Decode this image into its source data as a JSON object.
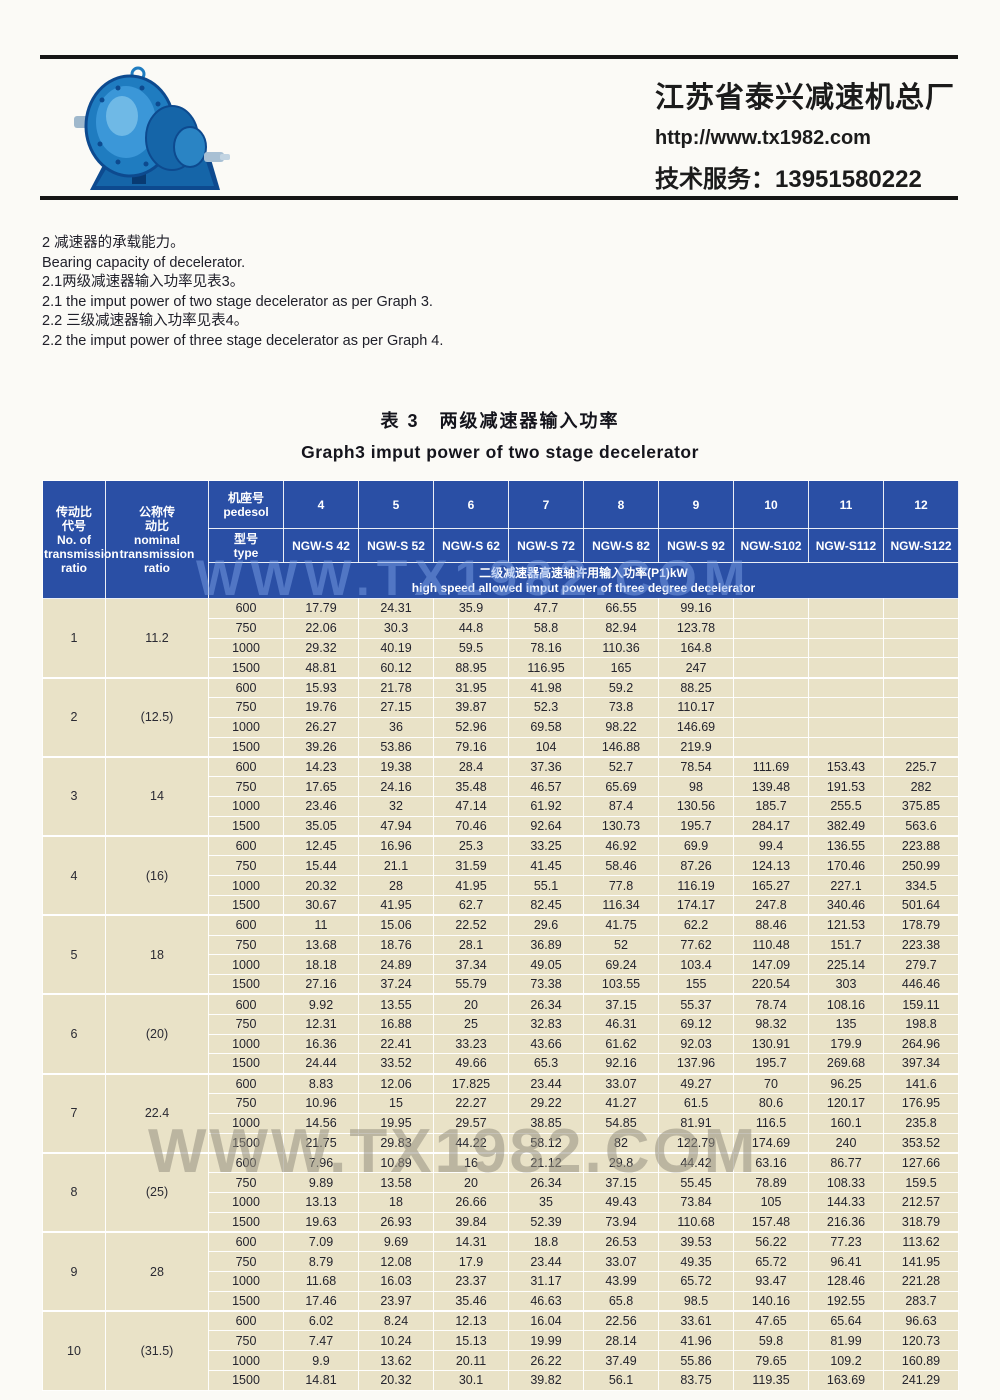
{
  "header": {
    "company": "江苏省泰兴减速机总厂",
    "website": "http://www.tx1982.com",
    "service": "技术服务：13951580222"
  },
  "intro": {
    "lines": [
      "2 减速器的承载能力。",
      "Bearing capacity of decelerator.",
      "2.1两级减速器输入功率见表3。",
      "2.1 the imput power of two stage decelerator as per Graph 3.",
      "2.2 三级减速器输入功率见表4。",
      "2.2 the imput power of three stage decelerator as per Graph 4."
    ]
  },
  "table": {
    "title_cn": "表 3　两级减速器输入功率",
    "title_en": "Graph3 imput power of two stage decelerator",
    "col1_header": "传动比\n代号\nNo. of\ntransmission\nratio",
    "col2_header": "公称传\n动比\nnominal\ntransmission\nratio",
    "pedestal_header": "机座号\npedesol",
    "type_header": "型号\ntype",
    "pedestal_numbers": [
      "4",
      "5",
      "6",
      "7",
      "8",
      "9",
      "10",
      "11",
      "12"
    ],
    "types": [
      "NGW-S 42",
      "NGW-S 52",
      "NGW-S 62",
      "NGW-S 72",
      "NGW-S 82",
      "NGW-S 92",
      "NGW-S102",
      "NGW-S112",
      "NGW-S122"
    ],
    "subheader": "二级减速器高速轴许用输入功率(P1)kW\nhigh speed allowed imput power of three degree decelerator",
    "groups": [
      {
        "no": "1",
        "ratio": "11.2",
        "rows": [
          {
            "speed": "600",
            "values": [
              "17.79",
              "24.31",
              "35.9",
              "47.7",
              "66.55",
              "99.16",
              "",
              "",
              ""
            ]
          },
          {
            "speed": "750",
            "values": [
              "22.06",
              "30.3",
              "44.8",
              "58.8",
              "82.94",
              "123.78",
              "",
              "",
              ""
            ]
          },
          {
            "speed": "1000",
            "values": [
              "29.32",
              "40.19",
              "59.5",
              "78.16",
              "110.36",
              "164.8",
              "",
              "",
              ""
            ]
          },
          {
            "speed": "1500",
            "values": [
              "48.81",
              "60.12",
              "88.95",
              "116.95",
              "165",
              "247",
              "",
              "",
              ""
            ]
          }
        ]
      },
      {
        "no": "2",
        "ratio": "(12.5)",
        "rows": [
          {
            "speed": "600",
            "values": [
              "15.93",
              "21.78",
              "31.95",
              "41.98",
              "59.2",
              "88.25",
              "",
              "",
              ""
            ]
          },
          {
            "speed": "750",
            "values": [
              "19.76",
              "27.15",
              "39.87",
              "52.3",
              "73.8",
              "110.17",
              "",
              "",
              ""
            ]
          },
          {
            "speed": "1000",
            "values": [
              "26.27",
              "36",
              "52.96",
              "69.58",
              "98.22",
              "146.69",
              "",
              "",
              ""
            ]
          },
          {
            "speed": "1500",
            "values": [
              "39.26",
              "53.86",
              "79.16",
              "104",
              "146.88",
              "219.9",
              "",
              "",
              ""
            ]
          }
        ]
      },
      {
        "no": "3",
        "ratio": "14",
        "rows": [
          {
            "speed": "600",
            "values": [
              "14.23",
              "19.38",
              "28.4",
              "37.36",
              "52.7",
              "78.54",
              "111.69",
              "153.43",
              "225.7"
            ]
          },
          {
            "speed": "750",
            "values": [
              "17.65",
              "24.16",
              "35.48",
              "46.57",
              "65.69",
              "98",
              "139.48",
              "191.53",
              "282"
            ]
          },
          {
            "speed": "1000",
            "values": [
              "23.46",
              "32",
              "47.14",
              "61.92",
              "87.4",
              "130.56",
              "185.7",
              "255.5",
              "375.85"
            ]
          },
          {
            "speed": "1500",
            "values": [
              "35.05",
              "47.94",
              "70.46",
              "92.64",
              "130.73",
              "195.7",
              "284.17",
              "382.49",
              "563.6"
            ]
          }
        ]
      },
      {
        "no": "4",
        "ratio": "(16)",
        "rows": [
          {
            "speed": "600",
            "values": [
              "12.45",
              "16.96",
              "25.3",
              "33.25",
              "46.92",
              "69.9",
              "99.4",
              "136.55",
              "223.88"
            ]
          },
          {
            "speed": "750",
            "values": [
              "15.44",
              "21.1",
              "31.59",
              "41.45",
              "58.46",
              "87.26",
              "124.13",
              "170.46",
              "250.99"
            ]
          },
          {
            "speed": "1000",
            "values": [
              "20.32",
              "28",
              "41.95",
              "55.1",
              "77.8",
              "116.19",
              "165.27",
              "227.1",
              "334.5"
            ]
          },
          {
            "speed": "1500",
            "values": [
              "30.67",
              "41.95",
              "62.7",
              "82.45",
              "116.34",
              "174.17",
              "247.8",
              "340.46",
              "501.64"
            ]
          }
        ]
      },
      {
        "no": "5",
        "ratio": "18",
        "rows": [
          {
            "speed": "600",
            "values": [
              "11",
              "15.06",
              "22.52",
              "29.6",
              "41.75",
              "62.2",
              "88.46",
              "121.53",
              "178.79"
            ]
          },
          {
            "speed": "750",
            "values": [
              "13.68",
              "18.76",
              "28.1",
              "36.89",
              "52",
              "77.62",
              "110.48",
              "151.7",
              "223.38"
            ]
          },
          {
            "speed": "1000",
            "values": [
              "18.18",
              "24.89",
              "37.34",
              "49.05",
              "69.24",
              "103.4",
              "147.09",
              "225.14",
              "279.7"
            ]
          },
          {
            "speed": "1500",
            "values": [
              "27.16",
              "37.24",
              "55.79",
              "73.38",
              "103.55",
              "155",
              "220.54",
              "303",
              "446.46"
            ]
          }
        ]
      },
      {
        "no": "6",
        "ratio": "(20)",
        "rows": [
          {
            "speed": "600",
            "values": [
              "9.92",
              "13.55",
              "20",
              "26.34",
              "37.15",
              "55.37",
              "78.74",
              "108.16",
              "159.11"
            ]
          },
          {
            "speed": "750",
            "values": [
              "12.31",
              "16.88",
              "25",
              "32.83",
              "46.31",
              "69.12",
              "98.32",
              "135",
              "198.8"
            ]
          },
          {
            "speed": "1000",
            "values": [
              "16.36",
              "22.41",
              "33.23",
              "43.66",
              "61.62",
              "92.03",
              "130.91",
              "179.9",
              "264.96"
            ]
          },
          {
            "speed": "1500",
            "values": [
              "24.44",
              "33.52",
              "49.66",
              "65.3",
              "92.16",
              "137.96",
              "195.7",
              "269.68",
              "397.34"
            ]
          }
        ]
      },
      {
        "no": "7",
        "ratio": "22.4",
        "rows": [
          {
            "speed": "600",
            "values": [
              "8.83",
              "12.06",
              "17.825",
              "23.44",
              "33.07",
              "49.27",
              "70",
              "96.25",
              "141.6"
            ]
          },
          {
            "speed": "750",
            "values": [
              "10.96",
              "15",
              "22.27",
              "29.22",
              "41.27",
              "61.5",
              "80.6",
              "120.17",
              "176.95"
            ]
          },
          {
            "speed": "1000",
            "values": [
              "14.56",
              "19.95",
              "29.57",
              "38.85",
              "54.85",
              "81.91",
              "116.5",
              "160.1",
              "235.8"
            ]
          },
          {
            "speed": "1500",
            "values": [
              "21.75",
              "29.83",
              "44.22",
              "58.12",
              "82",
              "122.79",
              "174.69",
              "240",
              "353.52"
            ]
          }
        ]
      },
      {
        "no": "8",
        "ratio": "(25)",
        "rows": [
          {
            "speed": "600",
            "values": [
              "7.96",
              "10.89",
              "16",
              "21.12",
              "29.8",
              "44.42",
              "63.16",
              "86.77",
              "127.66"
            ]
          },
          {
            "speed": "750",
            "values": [
              "9.89",
              "13.58",
              "20",
              "26.34",
              "37.15",
              "55.45",
              "78.89",
              "108.33",
              "159.5"
            ]
          },
          {
            "speed": "1000",
            "values": [
              "13.13",
              "18",
              "26.66",
              "35",
              "49.43",
              "73.84",
              "105",
              "144.33",
              "212.57"
            ]
          },
          {
            "speed": "1500",
            "values": [
              "19.63",
              "26.93",
              "39.84",
              "52.39",
              "73.94",
              "110.68",
              "157.48",
              "216.36",
              "318.79"
            ]
          }
        ]
      },
      {
        "no": "9",
        "ratio": "28",
        "rows": [
          {
            "speed": "600",
            "values": [
              "7.09",
              "9.69",
              "14.31",
              "18.8",
              "26.53",
              "39.53",
              "56.22",
              "77.23",
              "113.62"
            ]
          },
          {
            "speed": "750",
            "values": [
              "8.79",
              "12.08",
              "17.9",
              "23.44",
              "33.07",
              "49.35",
              "65.72",
              "96.41",
              "141.95"
            ]
          },
          {
            "speed": "1000",
            "values": [
              "11.68",
              "16.03",
              "23.37",
              "31.17",
              "43.99",
              "65.72",
              "93.47",
              "128.46",
              "221.28"
            ]
          },
          {
            "speed": "1500",
            "values": [
              "17.46",
              "23.97",
              "35.46",
              "46.63",
              "65.8",
              "98.5",
              "140.16",
              "192.55",
              "283.7"
            ]
          }
        ]
      },
      {
        "no": "10",
        "ratio": "(31.5)",
        "rows": [
          {
            "speed": "600",
            "values": [
              "6.02",
              "8.24",
              "12.13",
              "16.04",
              "22.56",
              "33.61",
              "47.65",
              "65.64",
              "96.63"
            ]
          },
          {
            "speed": "750",
            "values": [
              "7.47",
              "10.24",
              "15.13",
              "19.99",
              "28.14",
              "41.96",
              "59.8",
              "81.99",
              "120.73"
            ]
          },
          {
            "speed": "1000",
            "values": [
              "9.9",
              "13.62",
              "20.11",
              "26.22",
              "37.49",
              "55.86",
              "79.65",
              "109.2",
              "160.89"
            ]
          },
          {
            "speed": "1500",
            "values": [
              "14.81",
              "20.32",
              "30.1",
              "39.82",
              "56.1",
              "83.75",
              "119.35",
              "163.69",
              "241.29"
            ]
          }
        ]
      }
    ]
  },
  "watermark": {
    "text": "WWW.TX1982.COM"
  },
  "colors": {
    "header_blue": "#2a4fa5",
    "body_cream": "#e9e2c7",
    "logo_blue": "#1f7cc0",
    "logo_dark": "#0d4a8f"
  }
}
